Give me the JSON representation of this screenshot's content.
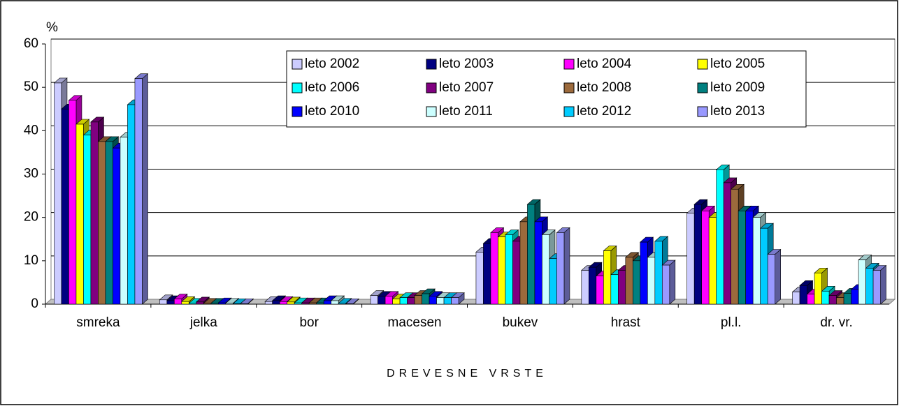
{
  "chart_data": {
    "type": "bar",
    "y_label": "%",
    "x_label": "DREVESNE VRSTE",
    "categories": [
      "smreka",
      "jelka",
      "bor",
      "macesen",
      "bukev",
      "hrast",
      "pl.l.",
      "dr. vr."
    ],
    "ylim": [
      0,
      60
    ],
    "yticks": [
      0,
      10,
      20,
      30,
      40,
      50,
      60
    ],
    "grid": true,
    "series": [
      {
        "name": "leto 2002",
        "color": "#ccccff",
        "values": [
          51,
          1.0,
          0.6,
          2.0,
          12,
          7.8,
          21,
          2.8
        ]
      },
      {
        "name": "leto 2003",
        "color": "#000080",
        "values": [
          45,
          0.8,
          0.8,
          1.8,
          14,
          8.5,
          23,
          4.3
        ]
      },
      {
        "name": "leto 2004",
        "color": "#ff00ff",
        "values": [
          47,
          1.2,
          0.6,
          1.8,
          16.5,
          6.5,
          21.5,
          2.3
        ]
      },
      {
        "name": "leto 2005",
        "color": "#ffff00",
        "values": [
          41.5,
          0.6,
          0.5,
          1.2,
          15.5,
          12.3,
          20,
          7.2
        ]
      },
      {
        "name": "leto 2006",
        "color": "#00ffff",
        "values": [
          39,
          0.2,
          0.3,
          1.5,
          16,
          6.8,
          31,
          3
        ]
      },
      {
        "name": "leto 2007",
        "color": "#800080",
        "values": [
          42,
          0.5,
          0.3,
          1.5,
          14.5,
          7.8,
          28,
          2
        ]
      },
      {
        "name": "leto 2008",
        "color": "#9c6a3c",
        "values": [
          37.5,
          0.2,
          0.3,
          2.0,
          19,
          10.8,
          26.5,
          1.5
        ]
      },
      {
        "name": "leto 2009",
        "color": "#008080",
        "values": [
          37.5,
          0.2,
          0.3,
          2.4,
          23,
          10,
          21.5,
          2.5
        ]
      },
      {
        "name": "leto 2010",
        "color": "#0000ff",
        "values": [
          36,
          0.3,
          0.8,
          1.8,
          19,
          14.3,
          21.5,
          3.4
        ]
      },
      {
        "name": "leto 2011",
        "color": "#ccffff",
        "values": [
          38.5,
          0.2,
          0.8,
          1.5,
          16,
          10.8,
          20,
          10.2
        ]
      },
      {
        "name": "leto 2012",
        "color": "#00ccff",
        "values": [
          46,
          0.1,
          0.2,
          1.5,
          10.5,
          14.5,
          17.5,
          8.3
        ]
      },
      {
        "name": "leto 2013",
        "color": "#9999ff",
        "values": [
          52,
          0.1,
          0.1,
          1.5,
          16.5,
          9,
          11.5,
          7.8
        ]
      }
    ]
  }
}
